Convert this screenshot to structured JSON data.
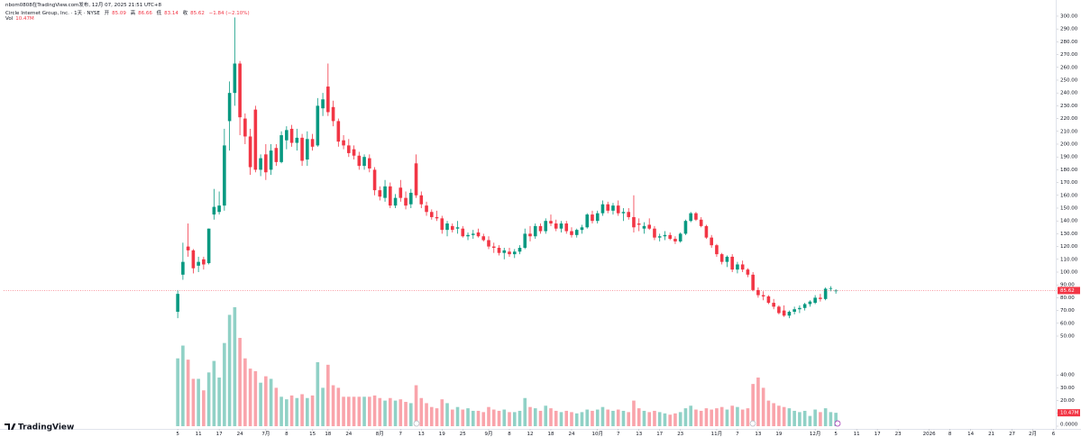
{
  "attribution": "nbom0808在TradingView.com发布, 12月 07, 2025 21:51 UTC+8",
  "logo": "TradingView",
  "chart_data": {
    "type": "candlestick",
    "title": "Circle Internet Group, Inc. · 1天 · NYSE",
    "ohlc_labels": [
      "开",
      "高",
      "低",
      "收"
    ],
    "change": "−1.84 (−2.10%)",
    "volume_name": "Vol",
    "volume_label": "10.47M",
    "up_color": "#089981",
    "down_color": "#f23645",
    "open": [
      69,
      98,
      120,
      117,
      105,
      110,
      107,
      145,
      147,
      152,
      218,
      240,
      263,
      220,
      206,
      227,
      180,
      192,
      180,
      197,
      186,
      203,
      212,
      201,
      205,
      188,
      204,
      199,
      228,
      245,
      229,
      218,
      203,
      199,
      196,
      191,
      183,
      189,
      180,
      164,
      158,
      167,
      152,
      166,
      158,
      153,
      185,
      160,
      152,
      147,
      143,
      142,
      133,
      136,
      134,
      134,
      128,
      129,
      131,
      128,
      125,
      120,
      119,
      115,
      116,
      114,
      116,
      119,
      130,
      128,
      136,
      132,
      140,
      138,
      134,
      138,
      132,
      129,
      133,
      135,
      145,
      140,
      146,
      153,
      148,
      152,
      146,
      147,
      143,
      138,
      134,
      137,
      134,
      127,
      128,
      129,
      126,
      124,
      130,
      140,
      146,
      141,
      136,
      127,
      121,
      114,
      108,
      112,
      102,
      106,
      102,
      98,
      86,
      82,
      81,
      76,
      73,
      70,
      66,
      69,
      71,
      72,
      75,
      76,
      80,
      79,
      87,
      85.09
    ],
    "high": [
      86,
      123,
      138,
      118,
      112,
      112,
      134,
      165,
      163,
      212,
      249,
      299,
      265,
      224,
      212,
      230,
      192,
      200,
      200,
      200,
      210,
      214,
      215,
      212,
      208,
      210,
      208,
      236,
      240,
      263,
      234,
      220,
      207,
      204,
      199,
      194,
      192,
      192,
      182,
      167,
      172,
      170,
      161,
      172,
      163,
      165,
      192,
      163,
      155,
      149,
      148,
      144,
      140,
      138,
      140,
      136,
      131,
      133,
      134,
      130,
      128,
      123,
      121,
      119,
      119,
      118,
      121,
      134,
      136,
      138,
      138,
      142,
      145,
      141,
      140,
      140,
      135,
      134,
      137,
      146,
      148,
      148,
      156,
      155,
      154,
      156,
      150,
      150,
      160,
      142,
      139,
      142,
      136,
      130,
      132,
      131,
      128,
      131,
      141,
      147,
      147,
      143,
      137,
      129,
      122,
      115,
      113,
      114,
      108,
      109,
      103,
      100,
      88,
      85,
      82,
      79,
      74,
      74,
      70,
      73,
      74,
      76,
      78,
      82,
      83,
      88,
      89,
      86.66
    ],
    "low": [
      64,
      94,
      112,
      99,
      100,
      102,
      106,
      141,
      145,
      148,
      195,
      230,
      207,
      200,
      176,
      178,
      175,
      172,
      176,
      183,
      185,
      196,
      198,
      195,
      183,
      183,
      195,
      198,
      222,
      222,
      214,
      198,
      196,
      190,
      188,
      180,
      180,
      178,
      160,
      156,
      155,
      150,
      150,
      155,
      149,
      150,
      158,
      150,
      144,
      141,
      140,
      130,
      128,
      131,
      130,
      127,
      125,
      126,
      127,
      124,
      118,
      115,
      113,
      110,
      112,
      111,
      114,
      118,
      124,
      126,
      130,
      130,
      136,
      132,
      131,
      130,
      127,
      127,
      130,
      134,
      138,
      138,
      144,
      146,
      145,
      144,
      140,
      141,
      131,
      132,
      130,
      133,
      125,
      124,
      125,
      125,
      122,
      123,
      129,
      139,
      140,
      135,
      126,
      119,
      112,
      106,
      104,
      100,
      99,
      100,
      96,
      85,
      80,
      78,
      75,
      71,
      67,
      65,
      64,
      67,
      68,
      70,
      73,
      75,
      77,
      78,
      85,
      83.14
    ],
    "close": [
      83,
      108,
      117,
      103,
      108,
      106,
      134,
      151,
      152,
      199,
      240,
      263,
      221,
      206,
      182,
      180,
      189,
      178,
      195,
      186,
      207,
      211,
      201,
      205,
      187,
      204,
      198,
      230,
      235,
      225,
      218,
      202,
      199,
      193,
      191,
      183,
      190,
      181,
      164,
      159,
      167,
      152,
      158,
      158,
      152,
      162,
      160,
      153,
      147,
      143,
      142,
      133,
      138,
      133,
      135,
      128,
      129,
      130,
      128,
      125,
      120,
      119,
      115,
      117,
      114,
      116,
      119,
      130,
      128,
      136,
      132,
      140,
      138,
      134,
      138,
      132,
      129,
      133,
      135,
      145,
      140,
      146,
      153,
      148,
      152,
      146,
      147,
      143,
      135,
      137,
      136,
      134,
      127,
      128,
      129,
      126,
      124,
      130,
      140,
      146,
      141,
      136,
      127,
      121,
      114,
      108,
      112,
      102,
      106,
      102,
      98,
      86,
      82,
      81,
      76,
      73,
      68,
      66,
      69,
      71,
      72,
      75,
      77,
      80,
      79,
      87,
      87.46,
      85.62
    ],
    "volume": [
      53,
      63,
      52,
      37,
      37,
      28,
      42,
      51,
      38,
      65,
      87,
      93,
      69,
      53,
      45,
      43,
      34,
      39,
      37,
      30,
      23,
      21,
      24,
      22,
      25,
      22,
      24,
      50,
      30,
      48,
      32,
      30,
      23,
      23,
      23,
      23,
      23,
      23,
      24,
      22,
      20,
      22,
      20,
      21,
      19,
      18,
      32,
      22,
      18,
      15,
      14,
      21,
      18,
      13,
      15,
      13,
      14,
      12,
      12,
      11,
      15,
      13,
      12,
      13,
      11,
      11,
      12,
      22,
      15,
      14,
      12,
      16,
      14,
      12,
      11,
      12,
      11,
      10,
      11,
      13,
      12,
      13,
      15,
      13,
      12,
      13,
      12,
      11,
      20,
      14,
      12,
      11,
      12,
      11,
      10,
      9,
      10,
      11,
      14,
      16,
      13,
      12,
      14,
      13,
      14,
      15,
      13,
      16,
      15,
      13,
      14,
      33,
      38,
      30,
      20,
      18,
      16,
      15,
      14,
      12,
      11,
      12,
      8,
      13,
      11,
      14,
      11,
      10.47
    ],
    "xlim": [
      -33.6,
      169.6
    ],
    "xticks": [
      {
        "value": 0,
        "label": "5"
      },
      {
        "value": 4,
        "label": "11"
      },
      {
        "value": 8,
        "label": "17"
      },
      {
        "value": 12,
        "label": "24"
      },
      {
        "value": 17,
        "label": "7月"
      },
      {
        "value": 21,
        "label": "8"
      },
      {
        "value": 26,
        "label": "15"
      },
      {
        "value": 29,
        "label": "18"
      },
      {
        "value": 33,
        "label": "24"
      },
      {
        "value": 39,
        "label": "8月"
      },
      {
        "value": 43,
        "label": "7"
      },
      {
        "value": 47,
        "label": "13"
      },
      {
        "value": 51,
        "label": "19"
      },
      {
        "value": 55,
        "label": "25"
      },
      {
        "value": 60,
        "label": "9月"
      },
      {
        "value": 64,
        "label": "8"
      },
      {
        "value": 68,
        "label": "12"
      },
      {
        "value": 72,
        "label": "18"
      },
      {
        "value": 76,
        "label": "24"
      },
      {
        "value": 81,
        "label": "10月"
      },
      {
        "value": 85,
        "label": "7"
      },
      {
        "value": 89,
        "label": "13"
      },
      {
        "value": 93,
        "label": "17"
      },
      {
        "value": 97,
        "label": "23"
      },
      {
        "value": 104,
        "label": "11月"
      },
      {
        "value": 108,
        "label": "7"
      },
      {
        "value": 112,
        "label": "13"
      },
      {
        "value": 116,
        "label": "19"
      },
      {
        "value": 123,
        "label": "12月"
      },
      {
        "value": 127,
        "label": "5"
      },
      {
        "value": 131,
        "label": "11"
      },
      {
        "value": 135,
        "label": "17"
      },
      {
        "value": 139,
        "label": "23"
      },
      {
        "value": 145,
        "label": "2026"
      },
      {
        "value": 149,
        "label": "8"
      },
      {
        "value": 153,
        "label": "14"
      },
      {
        "value": 157,
        "label": "21"
      },
      {
        "value": 161,
        "label": "27"
      },
      {
        "value": 165,
        "label": "2月"
      },
      {
        "value": 169,
        "label": "6"
      }
    ],
    "ylim": [
      -20.4,
      305.6
    ],
    "yticks": [
      {
        "value": 50,
        "label": "50.00"
      },
      {
        "value": 60,
        "label": "60.00"
      },
      {
        "value": 70,
        "label": "70.00"
      },
      {
        "value": 80,
        "label": "80.00"
      },
      {
        "value": 90,
        "label": "90.00"
      },
      {
        "value": 100,
        "label": "100.00"
      },
      {
        "value": 110,
        "label": "110.00"
      },
      {
        "value": 120,
        "label": "120.00"
      },
      {
        "value": 130,
        "label": "130.00"
      },
      {
        "value": 140,
        "label": "140.00"
      },
      {
        "value": 150,
        "label": "150.00"
      },
      {
        "value": 160,
        "label": "160.00"
      },
      {
        "value": 170,
        "label": "170.00"
      },
      {
        "value": 180,
        "label": "180.00"
      },
      {
        "value": 190,
        "label": "190.00"
      },
      {
        "value": 200,
        "label": "200.00"
      },
      {
        "value": 210,
        "label": "210.00"
      },
      {
        "value": 220,
        "label": "220.00"
      },
      {
        "value": 230,
        "label": "230.00"
      },
      {
        "value": 240,
        "label": "240.00"
      },
      {
        "value": 250,
        "label": "250.00"
      },
      {
        "value": 260,
        "label": "260.00"
      },
      {
        "value": 270,
        "label": "270.00"
      },
      {
        "value": 280,
        "label": "280.00"
      },
      {
        "value": 290,
        "label": "290.00"
      },
      {
        "value": 300,
        "label": "300.00"
      }
    ],
    "y2lim": [
      0,
      326
    ],
    "y2ticks": [
      {
        "value": 0,
        "label": "0.0000"
      },
      {
        "value": 10,
        "label": "10.00"
      },
      {
        "value": 20,
        "label": "20.00"
      },
      {
        "value": 30,
        "label": "30.00"
      },
      {
        "value": 40,
        "label": "40.00"
      }
    ]
  }
}
